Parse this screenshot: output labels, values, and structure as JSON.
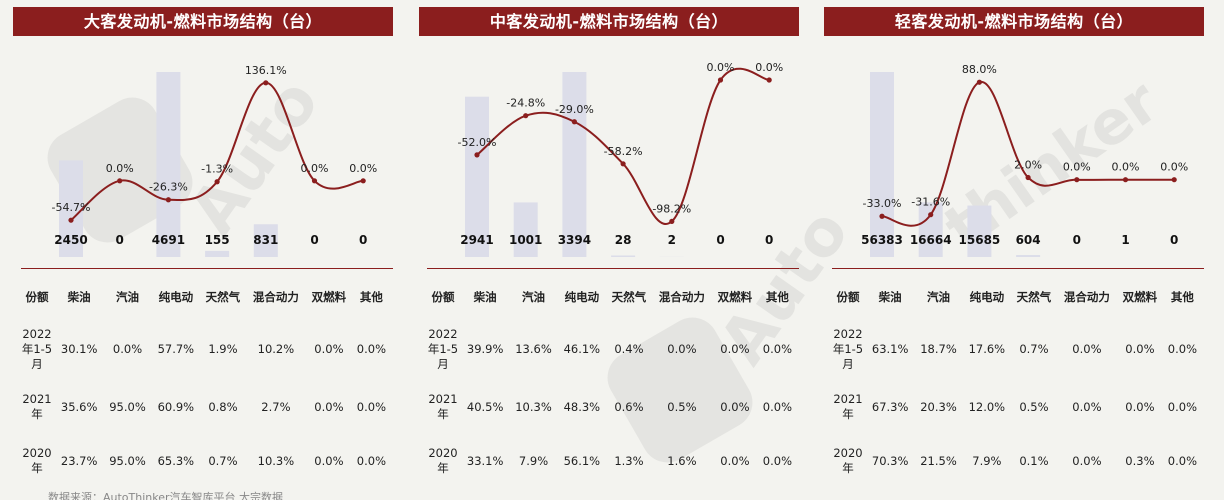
{
  "footer": "数据来源：AutoThinker汽车智库平台 大宗数据",
  "watermark": {
    "brand": "Autothinker",
    "chars": "汽 车 智 库"
  },
  "colors": {
    "title_bg": "#8b1e1e",
    "bar": "#dcdde9",
    "line": "#8b1e1e"
  },
  "chart_data": [
    {
      "type": "bar+line",
      "title": "大客发动机-燃料市场结构（台）",
      "categories": [
        "柴油",
        "汽油",
        "纯电动",
        "天然气",
        "混合动力",
        "双燃料",
        "其他"
      ],
      "series": [
        {
          "name": "",
          "type": "bar",
          "values": [
            2450,
            0,
            4691,
            155,
            831,
            0,
            0
          ]
        },
        {
          "name": "",
          "type": "line",
          "values": [
            -54.7,
            0.0,
            -26.3,
            -1.3,
            136.1,
            0.0,
            0.0
          ]
        }
      ],
      "bar_labels": [
        "2450",
        "0",
        "4691",
        "155",
        "831",
        "0",
        "0"
      ],
      "line_labels": [
        "-54.7%",
        "0.0%",
        "-26.3%",
        "-1.3%",
        "136.1%",
        "0.0%",
        "0.0%"
      ],
      "line_scale": [
        -60,
        140
      ]
    },
    {
      "type": "bar+line",
      "title": "中客发动机-燃料市场结构（台）",
      "categories": [
        "柴油",
        "汽油",
        "纯电动",
        "天然气",
        "混合动力",
        "双燃料",
        "其他"
      ],
      "series": [
        {
          "name": "",
          "type": "bar",
          "values": [
            2941,
            1001,
            3394,
            28,
            2,
            0,
            0
          ]
        },
        {
          "name": "",
          "type": "line",
          "values": [
            -52.0,
            -24.8,
            -29.0,
            -58.2,
            -98.2,
            0.0,
            0.0
          ]
        }
      ],
      "bar_labels": [
        "2941",
        "1001",
        "3394",
        "28",
        "2",
        "0",
        "0"
      ],
      "line_labels": [
        "-52.0%",
        "-24.8%",
        "-29.0%",
        "-58.2%",
        "-98.2%",
        "0.0%",
        "0.0%"
      ],
      "line_scale": [
        -100,
        0
      ]
    },
    {
      "type": "bar+line",
      "title": "轻客发动机-燃料市场结构（台）",
      "categories": [
        "柴油",
        "汽油",
        "纯电动",
        "天然气",
        "混合动力",
        "双燃料",
        "其他"
      ],
      "series": [
        {
          "name": "",
          "type": "bar",
          "values": [
            56383,
            16664,
            15685,
            604,
            0,
            1,
            0
          ]
        },
        {
          "name": "",
          "type": "line",
          "values": [
            -33.0,
            -31.6,
            88.0,
            2.0,
            0.0,
            0.0,
            0.0
          ]
        }
      ],
      "bar_labels": [
        "56383",
        "16664",
        "15685",
        "604",
        "0",
        "1",
        "0"
      ],
      "line_labels": [
        "-33.0%",
        "-31.6%",
        "88.0%",
        "2.0%",
        "0.0%",
        "0.0%",
        "0.0%"
      ],
      "line_scale": [
        -40,
        90
      ]
    }
  ],
  "tables": [
    {
      "header": [
        "份额",
        "柴油",
        "汽油",
        "纯电动",
        "天然气",
        "混合动力",
        "双燃料",
        "其他"
      ],
      "rows": [
        {
          "label": "2022年1-5月",
          "values": [
            "30.1%",
            "0.0%",
            "57.7%",
            "1.9%",
            "10.2%",
            "0.0%",
            "0.0%"
          ]
        },
        {
          "label": "2021年",
          "values": [
            "35.6%",
            "95.0%",
            "60.9%",
            "0.8%",
            "2.7%",
            "0.0%",
            "0.0%"
          ]
        },
        {
          "label": "2020年",
          "values": [
            "23.7%",
            "95.0%",
            "65.3%",
            "0.7%",
            "10.3%",
            "0.0%",
            "0.0%"
          ]
        }
      ]
    },
    {
      "header": [
        "份额",
        "柴油",
        "汽油",
        "纯电动",
        "天然气",
        "混合动力",
        "双燃料",
        "其他"
      ],
      "rows": [
        {
          "label": "2022年1-5月",
          "values": [
            "39.9%",
            "13.6%",
            "46.1%",
            "0.4%",
            "0.0%",
            "0.0%",
            "0.0%"
          ]
        },
        {
          "label": "2021年",
          "values": [
            "40.5%",
            "10.3%",
            "48.3%",
            "0.6%",
            "0.5%",
            "0.0%",
            "0.0%"
          ]
        },
        {
          "label": "2020年",
          "values": [
            "33.1%",
            "7.9%",
            "56.1%",
            "1.3%",
            "1.6%",
            "0.0%",
            "0.0%"
          ]
        }
      ]
    },
    {
      "header": [
        "份额",
        "柴油",
        "汽油",
        "纯电动",
        "天然气",
        "混合动力",
        "双燃料",
        "其他"
      ],
      "rows": [
        {
          "label": "2022年1-5月",
          "values": [
            "63.1%",
            "18.7%",
            "17.6%",
            "0.7%",
            "0.0%",
            "0.0%",
            "0.0%"
          ]
        },
        {
          "label": "2021年",
          "values": [
            "67.3%",
            "20.3%",
            "12.0%",
            "0.5%",
            "0.0%",
            "0.0%",
            "0.0%"
          ]
        },
        {
          "label": "2020年",
          "values": [
            "70.3%",
            "21.5%",
            "7.9%",
            "0.1%",
            "0.0%",
            "0.3%",
            "0.0%"
          ]
        }
      ]
    }
  ]
}
